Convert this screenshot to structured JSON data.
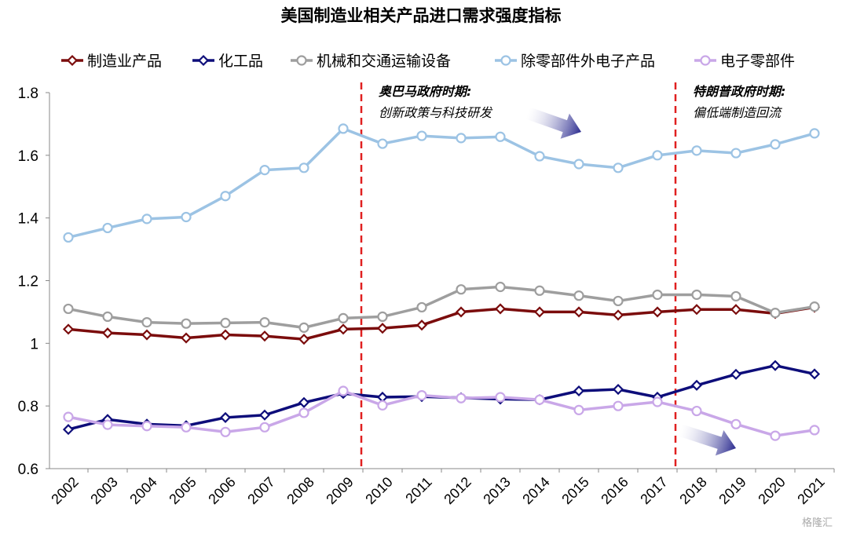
{
  "chart_data": {
    "type": "line",
    "title": "美国制造业相关产品进口需求强度指标",
    "x": [
      "2002",
      "2003",
      "2004",
      "2005",
      "2006",
      "2007",
      "2008",
      "2009",
      "2010",
      "2011",
      "2012",
      "2013",
      "2014",
      "2015",
      "2016",
      "2017",
      "2018",
      "2019",
      "2020",
      "2021"
    ],
    "ylim": [
      0.6,
      1.8
    ],
    "yticks": [
      "0.6",
      "0.8",
      "1",
      "1.2",
      "1.4",
      "1.6",
      "1.8"
    ],
    "legend_position": "top",
    "grid": false,
    "series": [
      {
        "name": "制造业产品",
        "color": "#7b0c0c",
        "fill": "#ffffff",
        "marker": "diamond",
        "values": [
          1.045,
          1.033,
          1.027,
          1.017,
          1.027,
          1.023,
          1.013,
          1.045,
          1.048,
          1.058,
          1.1,
          1.11,
          1.1,
          1.1,
          1.09,
          1.1,
          1.108,
          1.108,
          1.095,
          1.115
        ]
      },
      {
        "name": "化工品",
        "color": "#0d0d7a",
        "fill": "#ffffff",
        "marker": "diamond",
        "values": [
          0.725,
          0.757,
          0.742,
          0.737,
          0.763,
          0.771,
          0.811,
          0.84,
          0.828,
          0.83,
          0.826,
          0.822,
          0.82,
          0.848,
          0.853,
          0.828,
          0.866,
          0.901,
          0.929,
          0.902
        ]
      },
      {
        "name": "机械和交通运输设备",
        "color": "#9e9e9e",
        "fill": "#ffffff",
        "marker": "circle",
        "values": [
          1.11,
          1.085,
          1.067,
          1.063,
          1.065,
          1.067,
          1.05,
          1.08,
          1.085,
          1.115,
          1.172,
          1.18,
          1.168,
          1.152,
          1.135,
          1.155,
          1.155,
          1.15,
          1.097,
          1.117
        ]
      },
      {
        "name": "除零部件外电子产品",
        "color": "#9cc3e4",
        "fill": "#ffffff",
        "marker": "circle",
        "values": [
          1.338,
          1.368,
          1.397,
          1.403,
          1.47,
          1.553,
          1.56,
          1.685,
          1.637,
          1.662,
          1.655,
          1.659,
          1.597,
          1.572,
          1.56,
          1.6,
          1.615,
          1.607,
          1.635,
          1.67
        ]
      },
      {
        "name": "电子零部件",
        "color": "#c9a7e8",
        "fill": "#ffffff",
        "marker": "circle",
        "values": [
          0.765,
          0.74,
          0.736,
          0.732,
          0.717,
          0.732,
          0.778,
          0.848,
          0.802,
          0.834,
          0.825,
          0.828,
          0.82,
          0.787,
          0.8,
          0.813,
          0.784,
          0.742,
          0.705,
          0.723
        ]
      }
    ],
    "annotations": [
      {
        "year": "2009",
        "title": "奥巴马政府时期:",
        "subtitle": "创新政策与科技研发",
        "arrow_direction": "down-right"
      },
      {
        "year": "2017",
        "title": "特朗普政府时期:",
        "subtitle": "偏低端制造回流",
        "arrow_direction": "down-right"
      }
    ],
    "vline_color": "#e02020",
    "arrow_color": "#3a3a9a"
  },
  "watermark": "格隆汇"
}
